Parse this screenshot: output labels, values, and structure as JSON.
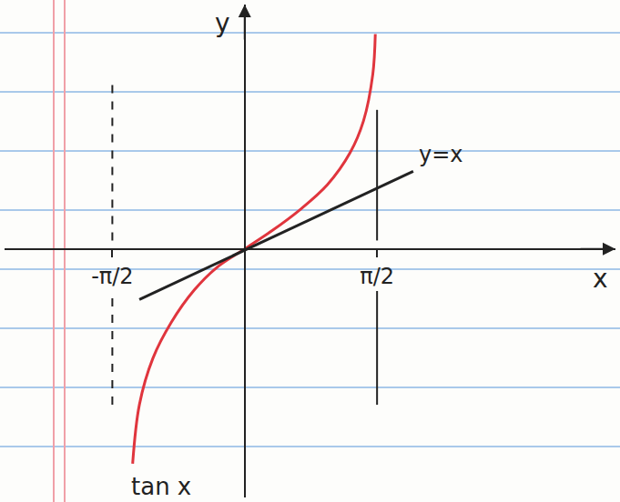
{
  "chart_data": {
    "type": "line",
    "x_label": "x",
    "y_label": "y",
    "xlim": [
      -2.85,
      4.4
    ],
    "ylim": [
      -2.95,
      2.9
    ],
    "xticks": [
      {
        "value": -1.5708,
        "label": "-π/2"
      },
      {
        "value": 1.5708,
        "label": "π/2"
      }
    ],
    "yticks": [],
    "tick_labels": "x",
    "grid": false,
    "asymptotes": [
      {
        "x": -1.5708,
        "from": -1.85,
        "to": 2.0,
        "line_style": "dash"
      },
      {
        "x": 1.5708,
        "from": -1.85,
        "to": 1.65,
        "line_style": "solid"
      }
    ],
    "series": [
      {
        "name": "tan x",
        "color": "#e0353d",
        "line_style": "solid",
        "x": [
          -1.33,
          -1.25,
          -1.09,
          -0.87,
          -0.6,
          -0.33,
          0,
          0.33,
          0.65,
          0.98,
          1.25,
          1.41,
          1.52,
          1.55
        ],
        "values": [
          -2.55,
          -1.85,
          -1.3,
          -0.87,
          -0.49,
          -0.22,
          0,
          0.22,
          0.46,
          0.76,
          1.14,
          1.52,
          2.07,
          2.55
        ]
      },
      {
        "name": "y=x",
        "color": "#222222",
        "line_style": "solid",
        "x": [
          -1.25,
          2.0
        ],
        "values": [
          -0.6,
          0.92
        ]
      }
    ]
  }
}
